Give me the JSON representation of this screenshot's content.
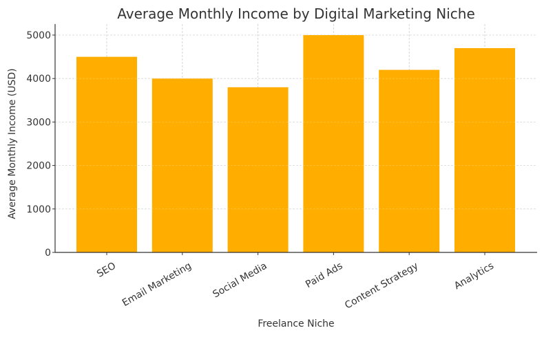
{
  "chart_data": {
    "type": "bar",
    "title": "Average Monthly Income by Digital Marketing Niche",
    "xlabel": "Freelance Niche",
    "ylabel": "Average Monthly Income (USD)",
    "categories": [
      "SEO",
      "Email Marketing",
      "Social Media",
      "Paid Ads",
      "Content Strategy",
      "Analytics"
    ],
    "values": [
      4500,
      4000,
      3800,
      5000,
      4200,
      4700
    ],
    "ylim": [
      0,
      5250
    ],
    "yticks": [
      0,
      1000,
      2000,
      3000,
      4000,
      5000
    ],
    "grid": true,
    "legend": null,
    "bar_color": "#ffae00",
    "x_tick_rotation": 30
  }
}
